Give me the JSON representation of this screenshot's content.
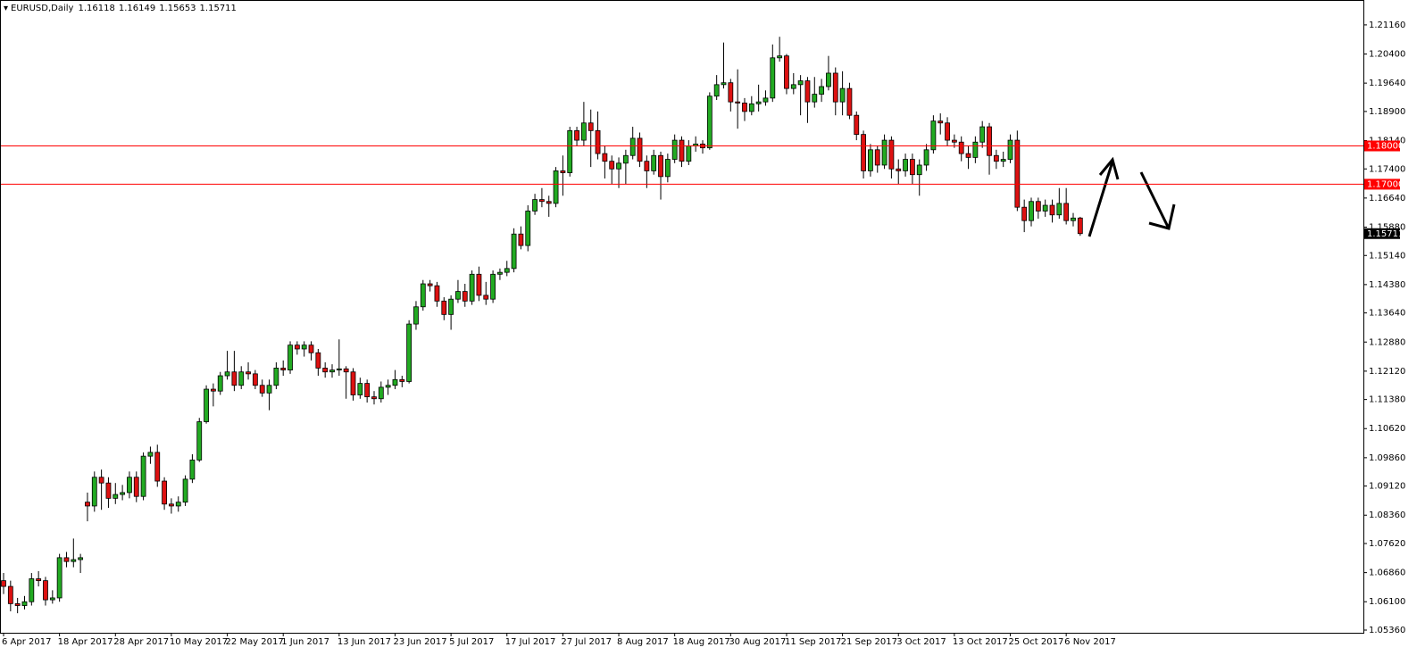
{
  "chart_data": {
    "type": "candlestick",
    "symbol": "EURUSD,Daily",
    "categories": [
      "6 Apr 2017",
      null,
      null,
      null,
      null,
      null,
      null,
      null,
      "18 Apr 2017",
      null,
      null,
      null,
      null,
      null,
      null,
      null,
      "28 Apr 2017",
      null,
      null,
      null,
      null,
      null,
      null,
      null,
      "10 May 2017",
      null,
      null,
      null,
      null,
      null,
      null,
      null,
      "22 May 2017",
      null,
      null,
      null,
      null,
      null,
      null,
      null,
      "1 Jun 2017",
      null,
      null,
      null,
      null,
      null,
      null,
      null,
      "13 Jun 2017",
      null,
      null,
      null,
      null,
      null,
      null,
      null,
      "23 Jun 2017",
      null,
      null,
      null,
      null,
      null,
      null,
      null,
      "5 Jul 2017",
      null,
      null,
      null,
      null,
      null,
      null,
      null,
      "17 Jul 2017",
      null,
      null,
      null,
      null,
      null,
      null,
      null,
      "27 Jul 2017",
      null,
      null,
      null,
      null,
      null,
      null,
      null,
      "8 Aug 2017",
      null,
      null,
      null,
      null,
      null,
      null,
      null,
      "18 Aug 2017",
      null,
      null,
      null,
      null,
      null,
      null,
      null,
      "30 Aug 2017",
      null,
      null,
      null,
      null,
      null,
      null,
      null,
      "11 Sep 2017",
      null,
      null,
      null,
      null,
      null,
      null,
      null,
      "21 Sep 2017",
      null,
      null,
      null,
      null,
      null,
      null,
      null,
      "3 Oct 2017",
      null,
      null,
      null,
      null,
      null,
      null,
      null,
      "13 Oct 2017",
      null,
      null,
      null,
      null,
      null,
      null,
      null,
      "25 Oct 2017",
      null,
      null,
      null,
      null,
      null,
      null,
      null,
      "6 Nov 2017",
      null,
      null
    ],
    "open": [
      1.0665,
      1.065,
      1.0605,
      1.06,
      1.061,
      1.067,
      1.0665,
      1.0615,
      1.062,
      1.0725,
      1.0715,
      1.072,
      1.087,
      1.086,
      1.0935,
      1.092,
      1.088,
      1.089,
      1.0895,
      1.0935,
      1.0885,
      1.099,
      1.1,
      1.0925,
      1.0865,
      1.086,
      1.087,
      1.093,
      1.098,
      1.108,
      1.1165,
      1.116,
      1.12,
      1.121,
      1.1175,
      1.121,
      1.1205,
      1.1175,
      1.1155,
      1.1175,
      1.122,
      1.1215,
      1.128,
      1.127,
      1.128,
      1.126,
      1.122,
      1.121,
      1.1215,
      1.1218,
      1.121,
      1.115,
      1.118,
      1.1145,
      1.114,
      1.117,
      1.1175,
      1.119,
      1.1185,
      1.1335,
      1.138,
      1.144,
      1.1435,
      1.1395,
      1.136,
      1.14,
      1.142,
      1.1395,
      1.1465,
      1.141,
      1.14,
      1.1465,
      1.147,
      1.148,
      1.157,
      1.154,
      1.163,
      1.166,
      1.1655,
      1.165,
      1.1735,
      1.173,
      1.184,
      1.1815,
      1.186,
      1.184,
      1.178,
      1.176,
      1.174,
      1.1755,
      1.1775,
      1.182,
      1.176,
      1.1735,
      1.1775,
      1.172,
      1.1765,
      1.1815,
      1.176,
      1.18,
      1.1805,
      1.1795,
      1.193,
      1.196,
      1.1965,
      1.1915,
      1.1912,
      1.189,
      1.191,
      1.1915,
      1.1925,
      1.203,
      1.2035,
      1.195,
      1.196,
      1.197,
      1.1915,
      1.1935,
      1.1955,
      1.199,
      1.1915,
      1.195,
      1.188,
      1.183,
      1.1735,
      1.179,
      1.175,
      1.1815,
      1.174,
      1.1735,
      1.1765,
      1.1725,
      1.175,
      1.179,
      1.1865,
      1.186,
      1.1815,
      1.181,
      1.178,
      1.177,
      1.181,
      1.185,
      1.1775,
      1.176,
      1.1765,
      1.1815,
      1.164,
      1.1605,
      1.1655,
      1.163,
      1.1645,
      1.162,
      1.165,
      1.1605,
      1.16118
    ],
    "high": [
      1.0685,
      1.0665,
      1.062,
      1.0625,
      1.0685,
      1.069,
      1.0675,
      1.064,
      1.0735,
      1.074,
      1.0775,
      1.0735,
      1.0895,
      1.095,
      1.0955,
      1.0935,
      1.092,
      1.0915,
      1.095,
      1.095,
      1.1,
      1.1015,
      1.102,
      1.0935,
      1.088,
      1.0885,
      1.094,
      1.0995,
      1.109,
      1.1175,
      1.118,
      1.121,
      1.1265,
      1.1265,
      1.1225,
      1.1235,
      1.1215,
      1.119,
      1.119,
      1.1235,
      1.124,
      1.129,
      1.129,
      1.129,
      1.129,
      1.127,
      1.1235,
      1.123,
      1.1295,
      1.1225,
      1.122,
      1.1195,
      1.119,
      1.116,
      1.1185,
      1.119,
      1.1215,
      1.12,
      1.1345,
      1.1395,
      1.145,
      1.145,
      1.1445,
      1.1405,
      1.141,
      1.145,
      1.144,
      1.1475,
      1.1485,
      1.1445,
      1.1475,
      1.148,
      1.15,
      1.1585,
      1.159,
      1.1645,
      1.1675,
      1.169,
      1.167,
      1.1745,
      1.1775,
      1.185,
      1.185,
      1.1915,
      1.1895,
      1.189,
      1.18,
      1.1775,
      1.177,
      1.179,
      1.185,
      1.1835,
      1.1775,
      1.179,
      1.1785,
      1.178,
      1.183,
      1.1825,
      1.1815,
      1.1825,
      1.1815,
      1.194,
      1.1985,
      1.207,
      1.1975,
      1.2,
      1.1925,
      1.193,
      1.196,
      1.1945,
      1.2065,
      1.2085,
      1.204,
      1.199,
      1.1985,
      1.198,
      1.198,
      1.1975,
      1.2035,
      1.2005,
      1.1995,
      1.1965,
      1.189,
      1.184,
      1.1805,
      1.18,
      1.183,
      1.1825,
      1.1765,
      1.178,
      1.178,
      1.1765,
      1.1805,
      1.188,
      1.1885,
      1.1875,
      1.183,
      1.1825,
      1.18,
      1.1825,
      1.1865,
      1.186,
      1.179,
      1.1785,
      1.183,
      1.184,
      1.166,
      1.1665,
      1.1665,
      1.166,
      1.166,
      1.169,
      1.169,
      1.1625,
      1.16149
    ],
    "low": [
      1.063,
      1.0585,
      1.058,
      1.059,
      1.06,
      1.065,
      1.06,
      1.0605,
      1.061,
      1.07,
      1.07,
      1.0685,
      1.082,
      1.0845,
      1.085,
      1.0855,
      1.0865,
      1.0875,
      1.088,
      1.087,
      1.0875,
      1.097,
      1.091,
      1.085,
      1.084,
      1.0845,
      1.086,
      1.092,
      1.0975,
      1.1075,
      1.112,
      1.115,
      1.119,
      1.116,
      1.1165,
      1.119,
      1.1165,
      1.1145,
      1.111,
      1.1165,
      1.12,
      1.1205,
      1.1255,
      1.125,
      1.124,
      1.12,
      1.1195,
      1.1195,
      1.12,
      1.114,
      1.1135,
      1.114,
      1.113,
      1.1125,
      1.113,
      1.115,
      1.1165,
      1.117,
      1.118,
      1.132,
      1.137,
      1.142,
      1.138,
      1.1345,
      1.132,
      1.139,
      1.138,
      1.1385,
      1.1395,
      1.1385,
      1.139,
      1.145,
      1.146,
      1.147,
      1.153,
      1.1525,
      1.162,
      1.164,
      1.1615,
      1.164,
      1.167,
      1.172,
      1.18,
      1.18,
      1.1745,
      1.1765,
      1.1715,
      1.17,
      1.169,
      1.17,
      1.1765,
      1.1745,
      1.169,
      1.1725,
      1.166,
      1.1705,
      1.1755,
      1.1745,
      1.175,
      1.1785,
      1.178,
      1.179,
      1.192,
      1.195,
      1.189,
      1.1845,
      1.1865,
      1.188,
      1.189,
      1.1905,
      1.1915,
      1.202,
      1.1935,
      1.1935,
      1.188,
      1.186,
      1.19,
      1.1915,
      1.1945,
      1.188,
      1.188,
      1.187,
      1.1815,
      1.1715,
      1.172,
      1.173,
      1.174,
      1.1715,
      1.17,
      1.172,
      1.17,
      1.167,
      1.1735,
      1.178,
      1.183,
      1.18,
      1.1795,
      1.176,
      1.174,
      1.1755,
      1.1795,
      1.1725,
      1.174,
      1.1745,
      1.1755,
      1.163,
      1.1575,
      1.159,
      1.161,
      1.1615,
      1.16,
      1.161,
      1.1595,
      1.159,
      1.15653
    ],
    "close": [
      1.065,
      1.0605,
      1.06,
      1.061,
      1.067,
      1.0665,
      1.0615,
      1.062,
      1.0725,
      1.0715,
      1.072,
      1.0725,
      1.086,
      1.0935,
      1.092,
      1.088,
      1.089,
      1.0895,
      1.0935,
      1.0885,
      1.099,
      1.1,
      1.0925,
      1.0865,
      1.086,
      1.087,
      1.093,
      1.098,
      1.108,
      1.1165,
      1.116,
      1.12,
      1.121,
      1.1175,
      1.121,
      1.1205,
      1.1175,
      1.1155,
      1.1175,
      1.122,
      1.1215,
      1.128,
      1.127,
      1.128,
      1.126,
      1.122,
      1.121,
      1.1215,
      1.1218,
      1.121,
      1.115,
      1.118,
      1.1145,
      1.114,
      1.117,
      1.1175,
      1.119,
      1.1185,
      1.1335,
      1.138,
      1.144,
      1.1435,
      1.1395,
      1.136,
      1.14,
      1.142,
      1.1395,
      1.1465,
      1.141,
      1.14,
      1.1465,
      1.147,
      1.148,
      1.157,
      1.154,
      1.163,
      1.166,
      1.1655,
      1.165,
      1.1735,
      1.173,
      1.184,
      1.1815,
      1.186,
      1.184,
      1.178,
      1.176,
      1.174,
      1.1755,
      1.1775,
      1.182,
      1.176,
      1.1735,
      1.1775,
      1.172,
      1.1765,
      1.1815,
      1.176,
      1.18,
      1.1805,
      1.1795,
      1.193,
      1.196,
      1.1965,
      1.1915,
      1.1912,
      1.189,
      1.191,
      1.1915,
      1.1925,
      1.203,
      1.2035,
      1.195,
      1.196,
      1.197,
      1.1915,
      1.1935,
      1.1955,
      1.199,
      1.1915,
      1.195,
      1.188,
      1.183,
      1.1735,
      1.179,
      1.175,
      1.1815,
      1.174,
      1.1735,
      1.1765,
      1.1725,
      1.175,
      1.179,
      1.1865,
      1.186,
      1.1815,
      1.181,
      1.178,
      1.177,
      1.181,
      1.185,
      1.1775,
      1.176,
      1.1765,
      1.1815,
      1.164,
      1.1605,
      1.1655,
      1.163,
      1.1645,
      1.162,
      1.165,
      1.1605,
      1.16118,
      1.15711
    ],
    "up_color": "#22aa22",
    "down_color": "#dd1111",
    "ylim": [
      1.0529,
      1.2181
    ],
    "yticks": [
      {
        "value": 1.0536,
        "label": "1.05360"
      },
      {
        "value": 1.061,
        "label": "1.06100"
      },
      {
        "value": 1.0686,
        "label": "1.06860"
      },
      {
        "value": 1.0762,
        "label": "1.07620"
      },
      {
        "value": 1.0836,
        "label": "1.08360"
      },
      {
        "value": 1.0912,
        "label": "1.09120"
      },
      {
        "value": 1.0986,
        "label": "1.09860"
      },
      {
        "value": 1.1062,
        "label": "1.10620"
      },
      {
        "value": 1.1138,
        "label": "1.11380"
      },
      {
        "value": 1.1212,
        "label": "1.12120"
      },
      {
        "value": 1.1288,
        "label": "1.12880"
      },
      {
        "value": 1.1364,
        "label": "1.13640"
      },
      {
        "value": 1.1438,
        "label": "1.14380"
      },
      {
        "value": 1.1514,
        "label": "1.15140"
      },
      {
        "value": 1.1588,
        "label": "1.15880"
      },
      {
        "value": 1.1664,
        "label": "1.16640"
      },
      {
        "value": 1.174,
        "label": "1.17400"
      },
      {
        "value": 1.1814,
        "label": "1.18140"
      },
      {
        "value": 1.189,
        "label": "1.18900"
      },
      {
        "value": 1.1964,
        "label": "1.19640"
      },
      {
        "value": 1.204,
        "label": "1.20400"
      },
      {
        "value": 1.2116,
        "label": "1.21160"
      }
    ],
    "hlines": [
      {
        "value": 1.18,
        "label": "1.18000"
      },
      {
        "value": 1.17,
        "label": "1.17000"
      }
    ],
    "hline_color": "#ff0000"
  }
}
